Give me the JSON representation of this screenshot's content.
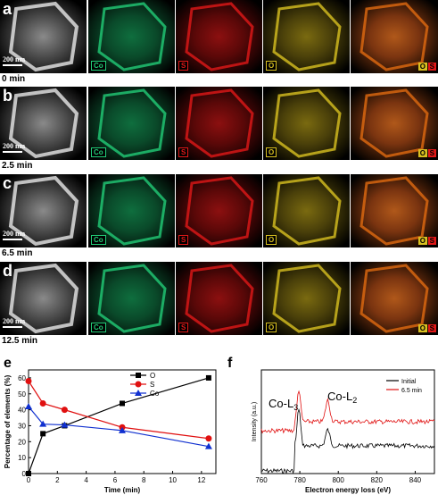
{
  "rows": [
    {
      "letter": "a",
      "time": "0 min",
      "scale": "200 nm"
    },
    {
      "letter": "b",
      "time": "2.5 min",
      "scale": "200 nm"
    },
    {
      "letter": "c",
      "time": "6.5 min",
      "scale": "200 nm"
    },
    {
      "letter": "d",
      "time": "12.5 min",
      "scale": "200 nm"
    }
  ],
  "map_labels": {
    "co": "Co",
    "s": "S",
    "o": "O",
    "overlay_o": "O",
    "overlay_s": "S"
  },
  "colors": {
    "co": "#22cc77",
    "s": "#e01818",
    "o": "#d8c020",
    "overlay": "#e06a10"
  },
  "chart_e": {
    "letter": "e",
    "chart_data": {
      "type": "line",
      "xlabel": "Time (min)",
      "ylabel": "Percentage of elements (%)",
      "xlim": [
        0,
        13
      ],
      "ylim": [
        0,
        65
      ],
      "xticks": [
        "0",
        "2",
        "4",
        "6",
        "8",
        "10",
        "12"
      ],
      "yticks": [
        "0",
        "10",
        "20",
        "30",
        "40",
        "50",
        "60"
      ],
      "series": [
        {
          "name": "O",
          "color": "#000000",
          "marker": "square",
          "x": [
            0,
            1,
            2.5,
            6.5,
            12.5
          ],
          "y": [
            0,
            25,
            30,
            44,
            60
          ]
        },
        {
          "name": "S",
          "color": "#e01010",
          "marker": "circle",
          "x": [
            0,
            1,
            2.5,
            6.5,
            12.5
          ],
          "y": [
            58,
            44,
            40,
            29,
            22
          ]
        },
        {
          "name": "Co",
          "color": "#1030d0",
          "marker": "triangle",
          "x": [
            0,
            1,
            2.5,
            6.5,
            12.5
          ],
          "y": [
            42,
            31,
            30.5,
            27,
            17
          ]
        }
      ],
      "legend": "top-right"
    }
  },
  "chart_f": {
    "letter": "f",
    "chart_data": {
      "type": "line",
      "xlabel": "Electron energy loss (eV)",
      "ylabel": "Intensity (a.u.)",
      "xlim": [
        760,
        850
      ],
      "xticks": [
        "760",
        "780",
        "800",
        "820",
        "840"
      ],
      "annotations": [
        "Co-L3",
        "Co-L2"
      ],
      "series": [
        {
          "name": "Initial",
          "color": "#000000"
        },
        {
          "name": "6.5 min",
          "color": "#e01010"
        }
      ],
      "legend": "top-right"
    }
  }
}
